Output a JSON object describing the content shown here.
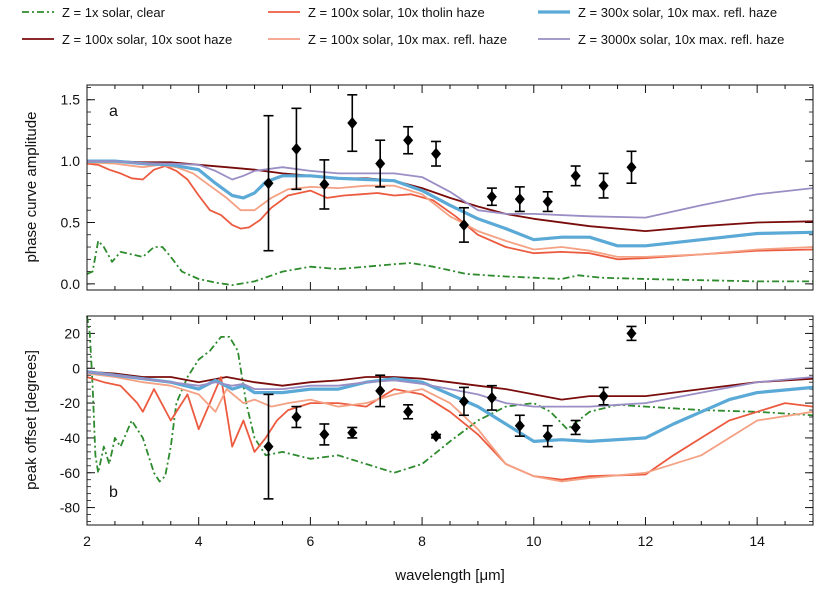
{
  "colors": {
    "clear": "#2e8b2e",
    "soot": "#7a0c0c",
    "tholin": "#ec5b40",
    "maxrefl100": "#f4a184",
    "maxrefl300": "#5aa9d6",
    "maxrefl3000": "#9a8ec4",
    "data": "#000000"
  },
  "chart_data": [
    {
      "type": "line",
      "panel_label": "a",
      "xlabel": "",
      "ylabel": "phase curve amplitude",
      "xlim": [
        2,
        15
      ],
      "ylim": [
        -0.05,
        1.62
      ],
      "yticks": [
        0.0,
        0.5,
        1.0,
        1.5
      ],
      "ytick_labels": [
        "0.0",
        "0.5",
        "1.0",
        "1.5"
      ],
      "series": [
        {
          "name": "Z = 1x solar, clear",
          "key": "clear",
          "x": [
            2.0,
            2.1,
            2.2,
            2.3,
            2.45,
            2.6,
            2.8,
            3.0,
            3.2,
            3.35,
            3.5,
            3.7,
            4.0,
            4.3,
            4.6,
            5.0,
            5.5,
            6.0,
            6.5,
            7.0,
            7.5,
            7.8,
            8.2,
            8.8,
            9.5,
            10.0,
            10.5,
            10.8,
            11.2,
            12.0,
            13.0,
            14.0,
            15.0
          ],
          "y": [
            0.08,
            0.1,
            0.35,
            0.3,
            0.18,
            0.26,
            0.24,
            0.22,
            0.3,
            0.3,
            0.22,
            0.1,
            0.04,
            0.01,
            -0.01,
            0.02,
            0.1,
            0.14,
            0.12,
            0.14,
            0.16,
            0.17,
            0.14,
            0.08,
            0.06,
            0.05,
            0.04,
            0.07,
            0.05,
            0.04,
            0.03,
            0.02,
            0.02
          ]
        },
        {
          "name": "Z = 100x solar, 10x soot haze",
          "key": "soot",
          "x": [
            2.0,
            2.5,
            3.0,
            3.5,
            4.0,
            4.5,
            5.0,
            5.5,
            6.0,
            6.5,
            7.0,
            7.5,
            8.0,
            8.5,
            9.0,
            9.5,
            10.0,
            11.0,
            12.0,
            13.0,
            14.0,
            15.0
          ],
          "y": [
            1.0,
            1.0,
            0.99,
            0.99,
            0.97,
            0.95,
            0.93,
            0.9,
            0.88,
            0.86,
            0.86,
            0.84,
            0.78,
            0.7,
            0.63,
            0.57,
            0.53,
            0.47,
            0.43,
            0.47,
            0.5,
            0.51
          ]
        },
        {
          "name": "Z = 100x solar, 10x tholin haze",
          "key": "tholin",
          "x": [
            2.0,
            2.2,
            2.4,
            2.6,
            2.8,
            3.0,
            3.2,
            3.4,
            3.6,
            3.8,
            4.0,
            4.2,
            4.4,
            4.6,
            4.75,
            4.9,
            5.1,
            5.3,
            5.6,
            6.0,
            6.3,
            6.6,
            6.9,
            7.2,
            7.5,
            7.8,
            8.2,
            8.6,
            9.0,
            9.5,
            10.0,
            10.5,
            11.0,
            11.5,
            12.0,
            13.0,
            14.0,
            15.0
          ],
          "y": [
            0.98,
            0.97,
            0.93,
            0.9,
            0.86,
            0.85,
            0.93,
            0.96,
            0.92,
            0.85,
            0.72,
            0.6,
            0.56,
            0.48,
            0.45,
            0.46,
            0.52,
            0.62,
            0.72,
            0.76,
            0.7,
            0.72,
            0.73,
            0.74,
            0.72,
            0.73,
            0.68,
            0.55,
            0.4,
            0.3,
            0.25,
            0.26,
            0.25,
            0.2,
            0.21,
            0.24,
            0.27,
            0.28
          ]
        },
        {
          "name": "Z = 100x solar, 10x max. refl. haze",
          "key": "maxrefl100",
          "x": [
            2.0,
            2.5,
            3.0,
            3.3,
            3.6,
            3.9,
            4.2,
            4.5,
            4.75,
            5.0,
            5.3,
            5.6,
            6.0,
            6.5,
            7.0,
            7.5,
            8.0,
            8.5,
            9.0,
            9.5,
            10.0,
            10.5,
            11.0,
            11.5,
            12.0,
            13.0,
            14.0,
            15.0
          ],
          "y": [
            0.99,
            0.98,
            0.95,
            0.97,
            0.95,
            0.9,
            0.8,
            0.7,
            0.6,
            0.6,
            0.7,
            0.77,
            0.79,
            0.78,
            0.8,
            0.8,
            0.73,
            0.55,
            0.43,
            0.35,
            0.28,
            0.3,
            0.27,
            0.22,
            0.22,
            0.24,
            0.28,
            0.3
          ]
        },
        {
          "name": "Z = 300x solar, 10x max. refl. haze",
          "key": "maxrefl300",
          "x": [
            2.0,
            2.5,
            3.0,
            3.5,
            4.0,
            4.3,
            4.6,
            4.8,
            5.0,
            5.2,
            5.5,
            6.0,
            6.5,
            7.0,
            7.5,
            8.0,
            8.5,
            9.0,
            9.5,
            10.0,
            10.5,
            11.0,
            11.5,
            12.0,
            13.0,
            14.0,
            15.0
          ],
          "y": [
            1.0,
            1.0,
            0.98,
            0.97,
            0.93,
            0.82,
            0.72,
            0.7,
            0.74,
            0.83,
            0.88,
            0.88,
            0.86,
            0.85,
            0.84,
            0.76,
            0.64,
            0.53,
            0.45,
            0.36,
            0.38,
            0.38,
            0.31,
            0.31,
            0.36,
            0.41,
            0.42
          ]
        },
        {
          "name": "Z = 3000x solar, 10x max. refl. haze",
          "key": "maxrefl3000",
          "x": [
            2.0,
            2.5,
            3.0,
            3.5,
            4.0,
            4.3,
            4.6,
            4.8,
            5.0,
            5.5,
            6.0,
            6.5,
            7.0,
            7.5,
            8.0,
            8.5,
            9.0,
            9.5,
            10.0,
            11.0,
            12.0,
            13.0,
            14.0,
            15.0
          ],
          "y": [
            1.0,
            1.0,
            0.98,
            0.98,
            0.97,
            0.92,
            0.85,
            0.88,
            0.92,
            0.95,
            0.92,
            0.9,
            0.9,
            0.9,
            0.87,
            0.75,
            0.6,
            0.57,
            0.57,
            0.55,
            0.54,
            0.64,
            0.73,
            0.78
          ]
        }
      ],
      "points": {
        "x": [
          5.25,
          5.75,
          6.25,
          6.75,
          7.25,
          7.75,
          8.25,
          8.75,
          9.25,
          9.75,
          10.25,
          10.75,
          11.25,
          11.75
        ],
        "y": [
          0.82,
          1.1,
          0.81,
          1.31,
          0.98,
          1.17,
          1.06,
          0.48,
          0.71,
          0.69,
          0.67,
          0.88,
          0.8,
          0.95
        ],
        "err": [
          0.55,
          0.33,
          0.2,
          0.23,
          0.19,
          0.11,
          0.1,
          0.14,
          0.07,
          0.1,
          0.08,
          0.08,
          0.1,
          0.13
        ]
      }
    },
    {
      "type": "line",
      "panel_label": "b",
      "xlabel": "wavelength [μm]",
      "ylabel": "peak offset [degrees]",
      "xlim": [
        2,
        15
      ],
      "ylim": [
        -90,
        30
      ],
      "yticks": [
        -80,
        -60,
        -40,
        -20,
        0,
        20
      ],
      "ytick_labels": [
        "-80",
        "-60",
        "-40",
        "-20",
        "0",
        "20"
      ],
      "xticks": [
        2,
        4,
        6,
        8,
        10,
        12,
        14
      ],
      "xtick_labels": [
        "2",
        "4",
        "6",
        "8",
        "10",
        "12",
        "14"
      ],
      "series": [
        {
          "name": "Z = 1x solar, clear",
          "key": "clear",
          "x": [
            2.0,
            2.05,
            2.1,
            2.15,
            2.2,
            2.3,
            2.4,
            2.5,
            2.6,
            2.8,
            3.0,
            3.2,
            3.3,
            3.4,
            3.5,
            3.6,
            3.8,
            4.0,
            4.2,
            4.4,
            4.55,
            4.7,
            4.85,
            5.0,
            5.2,
            5.5,
            6.0,
            6.5,
            7.0,
            7.5,
            8.0,
            8.5,
            9.0,
            9.5,
            10.0,
            10.3,
            10.6,
            10.8,
            11.0,
            11.5,
            12.0,
            13.0,
            14.0,
            15.0
          ],
          "y": [
            30,
            20,
            -10,
            -50,
            -60,
            -45,
            -55,
            -40,
            -45,
            -30,
            -40,
            -60,
            -65,
            -62,
            -45,
            -20,
            -5,
            5,
            10,
            18,
            18,
            10,
            -20,
            -40,
            -50,
            -48,
            -52,
            -50,
            -55,
            -60,
            -55,
            -42,
            -30,
            -22,
            -20,
            -25,
            -35,
            -30,
            -25,
            -21,
            -22,
            -24,
            -25,
            -27
          ]
        },
        {
          "name": "Z = 100x solar, 10x soot haze",
          "key": "soot",
          "x": [
            2.0,
            2.5,
            3.0,
            3.5,
            4.0,
            4.5,
            5.0,
            5.5,
            6.0,
            6.5,
            7.0,
            7.5,
            8.0,
            8.5,
            9.0,
            9.5,
            10.0,
            10.5,
            11.0,
            12.0,
            13.0,
            14.0,
            15.0
          ],
          "y": [
            -2,
            -3,
            -5,
            -5,
            -8,
            -5,
            -8,
            -10,
            -8,
            -7,
            -5,
            -5,
            -6,
            -8,
            -10,
            -12,
            -15,
            -18,
            -16,
            -16,
            -12,
            -8,
            -6
          ]
        },
        {
          "name": "Z = 100x solar, 10x tholin haze",
          "key": "tholin",
          "x": [
            2.0,
            2.3,
            2.6,
            2.9,
            3.0,
            3.2,
            3.5,
            3.8,
            4.0,
            4.2,
            4.4,
            4.6,
            4.8,
            5.0,
            5.2,
            5.4,
            5.6,
            6.0,
            6.5,
            7.0,
            7.5,
            8.0,
            8.5,
            9.0,
            9.5,
            10.0,
            10.5,
            11.0,
            12.0,
            12.5,
            13.0,
            13.5,
            14.0,
            14.5,
            15.0
          ],
          "y": [
            -5,
            -8,
            -10,
            -20,
            -25,
            -12,
            -30,
            -15,
            -35,
            -20,
            -5,
            -45,
            -30,
            -48,
            -40,
            -30,
            -24,
            -20,
            -20,
            -22,
            -12,
            -15,
            -25,
            -38,
            -55,
            -62,
            -64,
            -62,
            -61,
            -50,
            -40,
            -30,
            -25,
            -20,
            -22
          ]
        },
        {
          "name": "Z = 100x solar, 10x max. refl. haze",
          "key": "maxrefl100",
          "x": [
            2.0,
            2.5,
            3.0,
            3.5,
            4.0,
            4.3,
            4.5,
            4.8,
            5.0,
            5.3,
            5.6,
            6.0,
            6.5,
            7.0,
            7.5,
            8.0,
            8.5,
            9.0,
            9.5,
            10.0,
            10.5,
            11.0,
            12.0,
            13.0,
            14.0,
            15.0
          ],
          "y": [
            -3,
            -5,
            -8,
            -10,
            -15,
            -25,
            -12,
            -20,
            -18,
            -22,
            -20,
            -18,
            -22,
            -20,
            -15,
            -12,
            -20,
            -35,
            -55,
            -62,
            -65,
            -63,
            -60,
            -50,
            -30,
            -25
          ]
        },
        {
          "name": "Z = 300x solar, 10x max. refl. haze",
          "key": "maxrefl300",
          "x": [
            2.0,
            2.5,
            3.0,
            3.5,
            4.0,
            4.3,
            4.6,
            4.8,
            5.0,
            5.5,
            6.0,
            6.5,
            7.0,
            7.5,
            8.0,
            8.5,
            9.0,
            9.5,
            10.0,
            10.5,
            11.0,
            12.0,
            12.5,
            13.0,
            13.5,
            14.0,
            15.0
          ],
          "y": [
            -2,
            -4,
            -6,
            -8,
            -12,
            -7,
            -12,
            -10,
            -14,
            -14,
            -12,
            -12,
            -8,
            -6,
            -8,
            -15,
            -22,
            -32,
            -42,
            -41,
            -42,
            -40,
            -32,
            -25,
            -18,
            -14,
            -11
          ]
        },
        {
          "name": "Z = 3000x solar, 10x max. refl. haze",
          "key": "maxrefl3000",
          "x": [
            2.0,
            2.5,
            3.0,
            3.5,
            4.0,
            4.3,
            4.6,
            4.8,
            5.0,
            5.5,
            6.0,
            6.5,
            7.0,
            7.5,
            8.0,
            8.5,
            9.0,
            9.5,
            10.0,
            11.0,
            12.0,
            13.0,
            14.0,
            15.0
          ],
          "y": [
            -2,
            -4,
            -6,
            -8,
            -10,
            -8,
            -10,
            -9,
            -12,
            -12,
            -10,
            -10,
            -8,
            -7,
            -9,
            -12,
            -15,
            -20,
            -22,
            -22,
            -20,
            -14,
            -8,
            -5
          ]
        }
      ],
      "points": {
        "x": [
          5.25,
          5.75,
          6.25,
          6.75,
          7.25,
          7.75,
          8.25,
          8.75,
          9.25,
          9.75,
          10.25,
          10.75,
          11.25,
          11.75
        ],
        "y": [
          -45,
          -28,
          -38,
          -37,
          -13,
          -25,
          -39,
          -19,
          -17,
          -33,
          -39,
          -34,
          -16,
          20
        ],
        "err": [
          30,
          6,
          6,
          3,
          9,
          4,
          1,
          8,
          7,
          6,
          6,
          4,
          5,
          4
        ]
      }
    }
  ]
}
